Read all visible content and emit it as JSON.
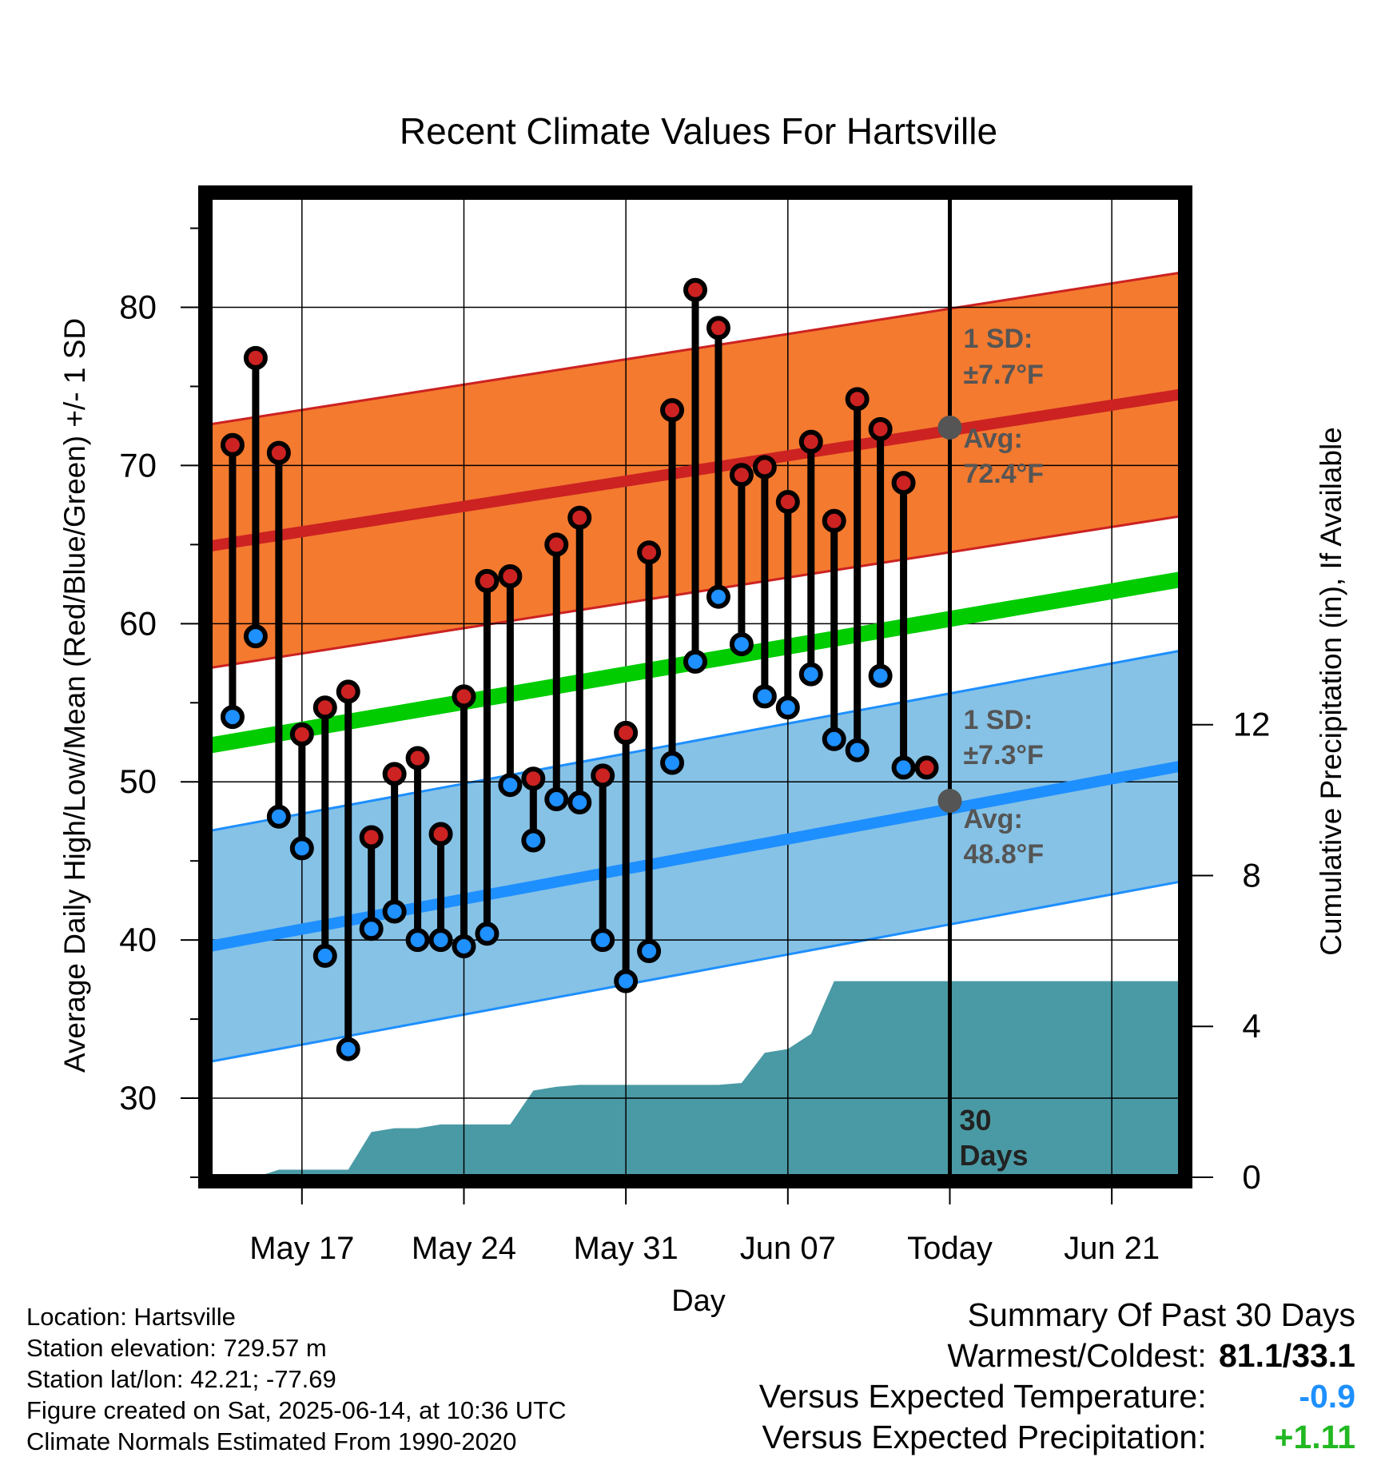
{
  "chart_data": {
    "type": "line",
    "title": "Recent Climate Values For Hartsville",
    "xlabel": "Day",
    "ylabel": "Average Daily High/Low/Mean (Red/Blue/Green) +/- 1 SD",
    "y2label": "Cumulative Precipitation (in), If Available",
    "ylim": [
      25,
      87
    ],
    "y2lim": [
      0,
      26
    ],
    "xlim": [
      "2025-05-13",
      "2025-06-24"
    ],
    "yticks": [
      30,
      40,
      50,
      60,
      70,
      80
    ],
    "y2ticks": [
      0,
      4,
      8,
      12
    ],
    "xticks": [
      {
        "date": "2025-05-17",
        "label": "May 17"
      },
      {
        "date": "2025-05-24",
        "label": "May 24"
      },
      {
        "date": "2025-05-31",
        "label": "May 31"
      },
      {
        "date": "2025-06-07",
        "label": "Jun 07"
      },
      {
        "date": "2025-06-14",
        "label": "Today"
      },
      {
        "date": "2025-06-21",
        "label": "Jun 21"
      }
    ],
    "today": "2025-06-14",
    "today_label": "30 Days",
    "normals": {
      "high_avg_start": 64.9,
      "high_avg_end": 74.5,
      "high_sd": 7.7,
      "low_avg_start": 39.6,
      "low_avg_end": 51.0,
      "low_sd": 7.3,
      "mean_start": 52.3,
      "mean_end": 62.8
    },
    "annotations": {
      "high_sd_label": "1 SD:",
      "high_sd_value": "±7.7°F",
      "high_avg_label": "Avg:",
      "high_avg_value": "72.4°F",
      "high_avg_today": 72.4,
      "low_sd_label": "1 SD:",
      "low_sd_value": "±7.3°F",
      "low_avg_label": "Avg:",
      "low_avg_value": "48.8°F",
      "low_avg_today": 48.8
    },
    "series": [
      {
        "name": "High",
        "x": [
          "2025-05-14",
          "2025-05-15",
          "2025-05-16",
          "2025-05-17",
          "2025-05-18",
          "2025-05-19",
          "2025-05-20",
          "2025-05-21",
          "2025-05-22",
          "2025-05-23",
          "2025-05-24",
          "2025-05-25",
          "2025-05-26",
          "2025-05-27",
          "2025-05-28",
          "2025-05-29",
          "2025-05-30",
          "2025-05-31",
          "2025-06-01",
          "2025-06-02",
          "2025-06-03",
          "2025-06-04",
          "2025-06-05",
          "2025-06-06",
          "2025-06-07",
          "2025-06-08",
          "2025-06-09",
          "2025-06-10",
          "2025-06-11",
          "2025-06-12",
          "2025-06-13"
        ],
        "values": [
          71.3,
          76.8,
          70.8,
          53.0,
          54.7,
          55.7,
          46.5,
          50.5,
          51.5,
          46.7,
          55.4,
          62.7,
          63.0,
          50.2,
          65.0,
          66.7,
          50.4,
          53.1,
          64.5,
          73.5,
          81.1,
          78.7,
          69.4,
          69.9,
          67.7,
          71.5,
          66.5,
          74.2,
          72.3,
          68.9,
          50.9
        ]
      },
      {
        "name": "Low",
        "x": [
          "2025-05-14",
          "2025-05-15",
          "2025-05-16",
          "2025-05-17",
          "2025-05-18",
          "2025-05-19",
          "2025-05-20",
          "2025-05-21",
          "2025-05-22",
          "2025-05-23",
          "2025-05-24",
          "2025-05-25",
          "2025-05-26",
          "2025-05-27",
          "2025-05-28",
          "2025-05-29",
          "2025-05-30",
          "2025-05-31",
          "2025-06-01",
          "2025-06-02",
          "2025-06-03",
          "2025-06-04",
          "2025-06-05",
          "2025-06-06",
          "2025-06-07",
          "2025-06-08",
          "2025-06-09",
          "2025-06-10",
          "2025-06-11",
          "2025-06-12",
          "2025-06-13"
        ],
        "values": [
          54.1,
          59.2,
          47.8,
          45.8,
          39.0,
          33.1,
          40.7,
          41.8,
          40.0,
          40.0,
          39.6,
          40.4,
          49.8,
          46.3,
          48.9,
          48.7,
          40.0,
          37.4,
          39.3,
          51.2,
          57.6,
          61.7,
          58.7,
          55.4,
          54.7,
          56.8,
          52.7,
          52.0,
          56.7,
          50.9,
          null
        ]
      },
      {
        "name": "Cumulative Precipitation",
        "x": [
          "2025-05-13",
          "2025-05-14",
          "2025-05-15",
          "2025-05-16",
          "2025-05-17",
          "2025-05-18",
          "2025-05-19",
          "2025-05-20",
          "2025-05-21",
          "2025-05-22",
          "2025-05-23",
          "2025-05-24",
          "2025-05-25",
          "2025-05-26",
          "2025-05-27",
          "2025-05-28",
          "2025-05-29",
          "2025-05-30",
          "2025-05-31",
          "2025-06-01",
          "2025-06-02",
          "2025-06-03",
          "2025-06-04",
          "2025-06-05",
          "2025-06-06",
          "2025-06-07",
          "2025-06-08",
          "2025-06-09",
          "2025-06-10",
          "2025-06-11",
          "2025-06-12",
          "2025-06-13",
          "2025-06-14",
          "2025-06-24"
        ],
        "values": [
          0.0,
          0.0,
          0.0,
          0.2,
          0.2,
          0.2,
          0.2,
          1.2,
          1.3,
          1.3,
          1.4,
          1.4,
          1.4,
          1.4,
          2.3,
          2.4,
          2.45,
          2.45,
          2.45,
          2.45,
          2.45,
          2.45,
          2.45,
          2.5,
          3.3,
          3.4,
          3.8,
          5.2,
          5.2,
          5.2,
          5.2,
          5.2,
          5.2,
          5.2
        ]
      }
    ]
  },
  "info": {
    "location": "Location: Hartsville",
    "elevation": "Station elevation: 729.57 m",
    "latlon": "Station lat/lon: 42.21; -77.69",
    "created": "Figure created on Sat, 2025-06-14, at 10:36 UTC",
    "normals": "Climate Normals Estimated From 1990-2020"
  },
  "summary": {
    "heading": "Summary Of Past 30 Days",
    "warmest_label": "Warmest/Coldest:",
    "warmest_value": "81.1/33.1",
    "temp_label": "Versus Expected Temperature:",
    "temp_value": "-0.9",
    "precip_label": "Versus Expected Precipitation:",
    "precip_value": "+1.11",
    "temp_color": "#1e90ff",
    "precip_color": "#22b822"
  },
  "colors": {
    "high_band": "#f47a2f",
    "high_line": "#cc2222",
    "low_band": "#86c2e6",
    "low_line": "#1e8fff",
    "mean_line": "#00cc00",
    "precip": "#4a9aa5",
    "high_marker": "#cc2222",
    "low_marker": "#1e90ff"
  }
}
